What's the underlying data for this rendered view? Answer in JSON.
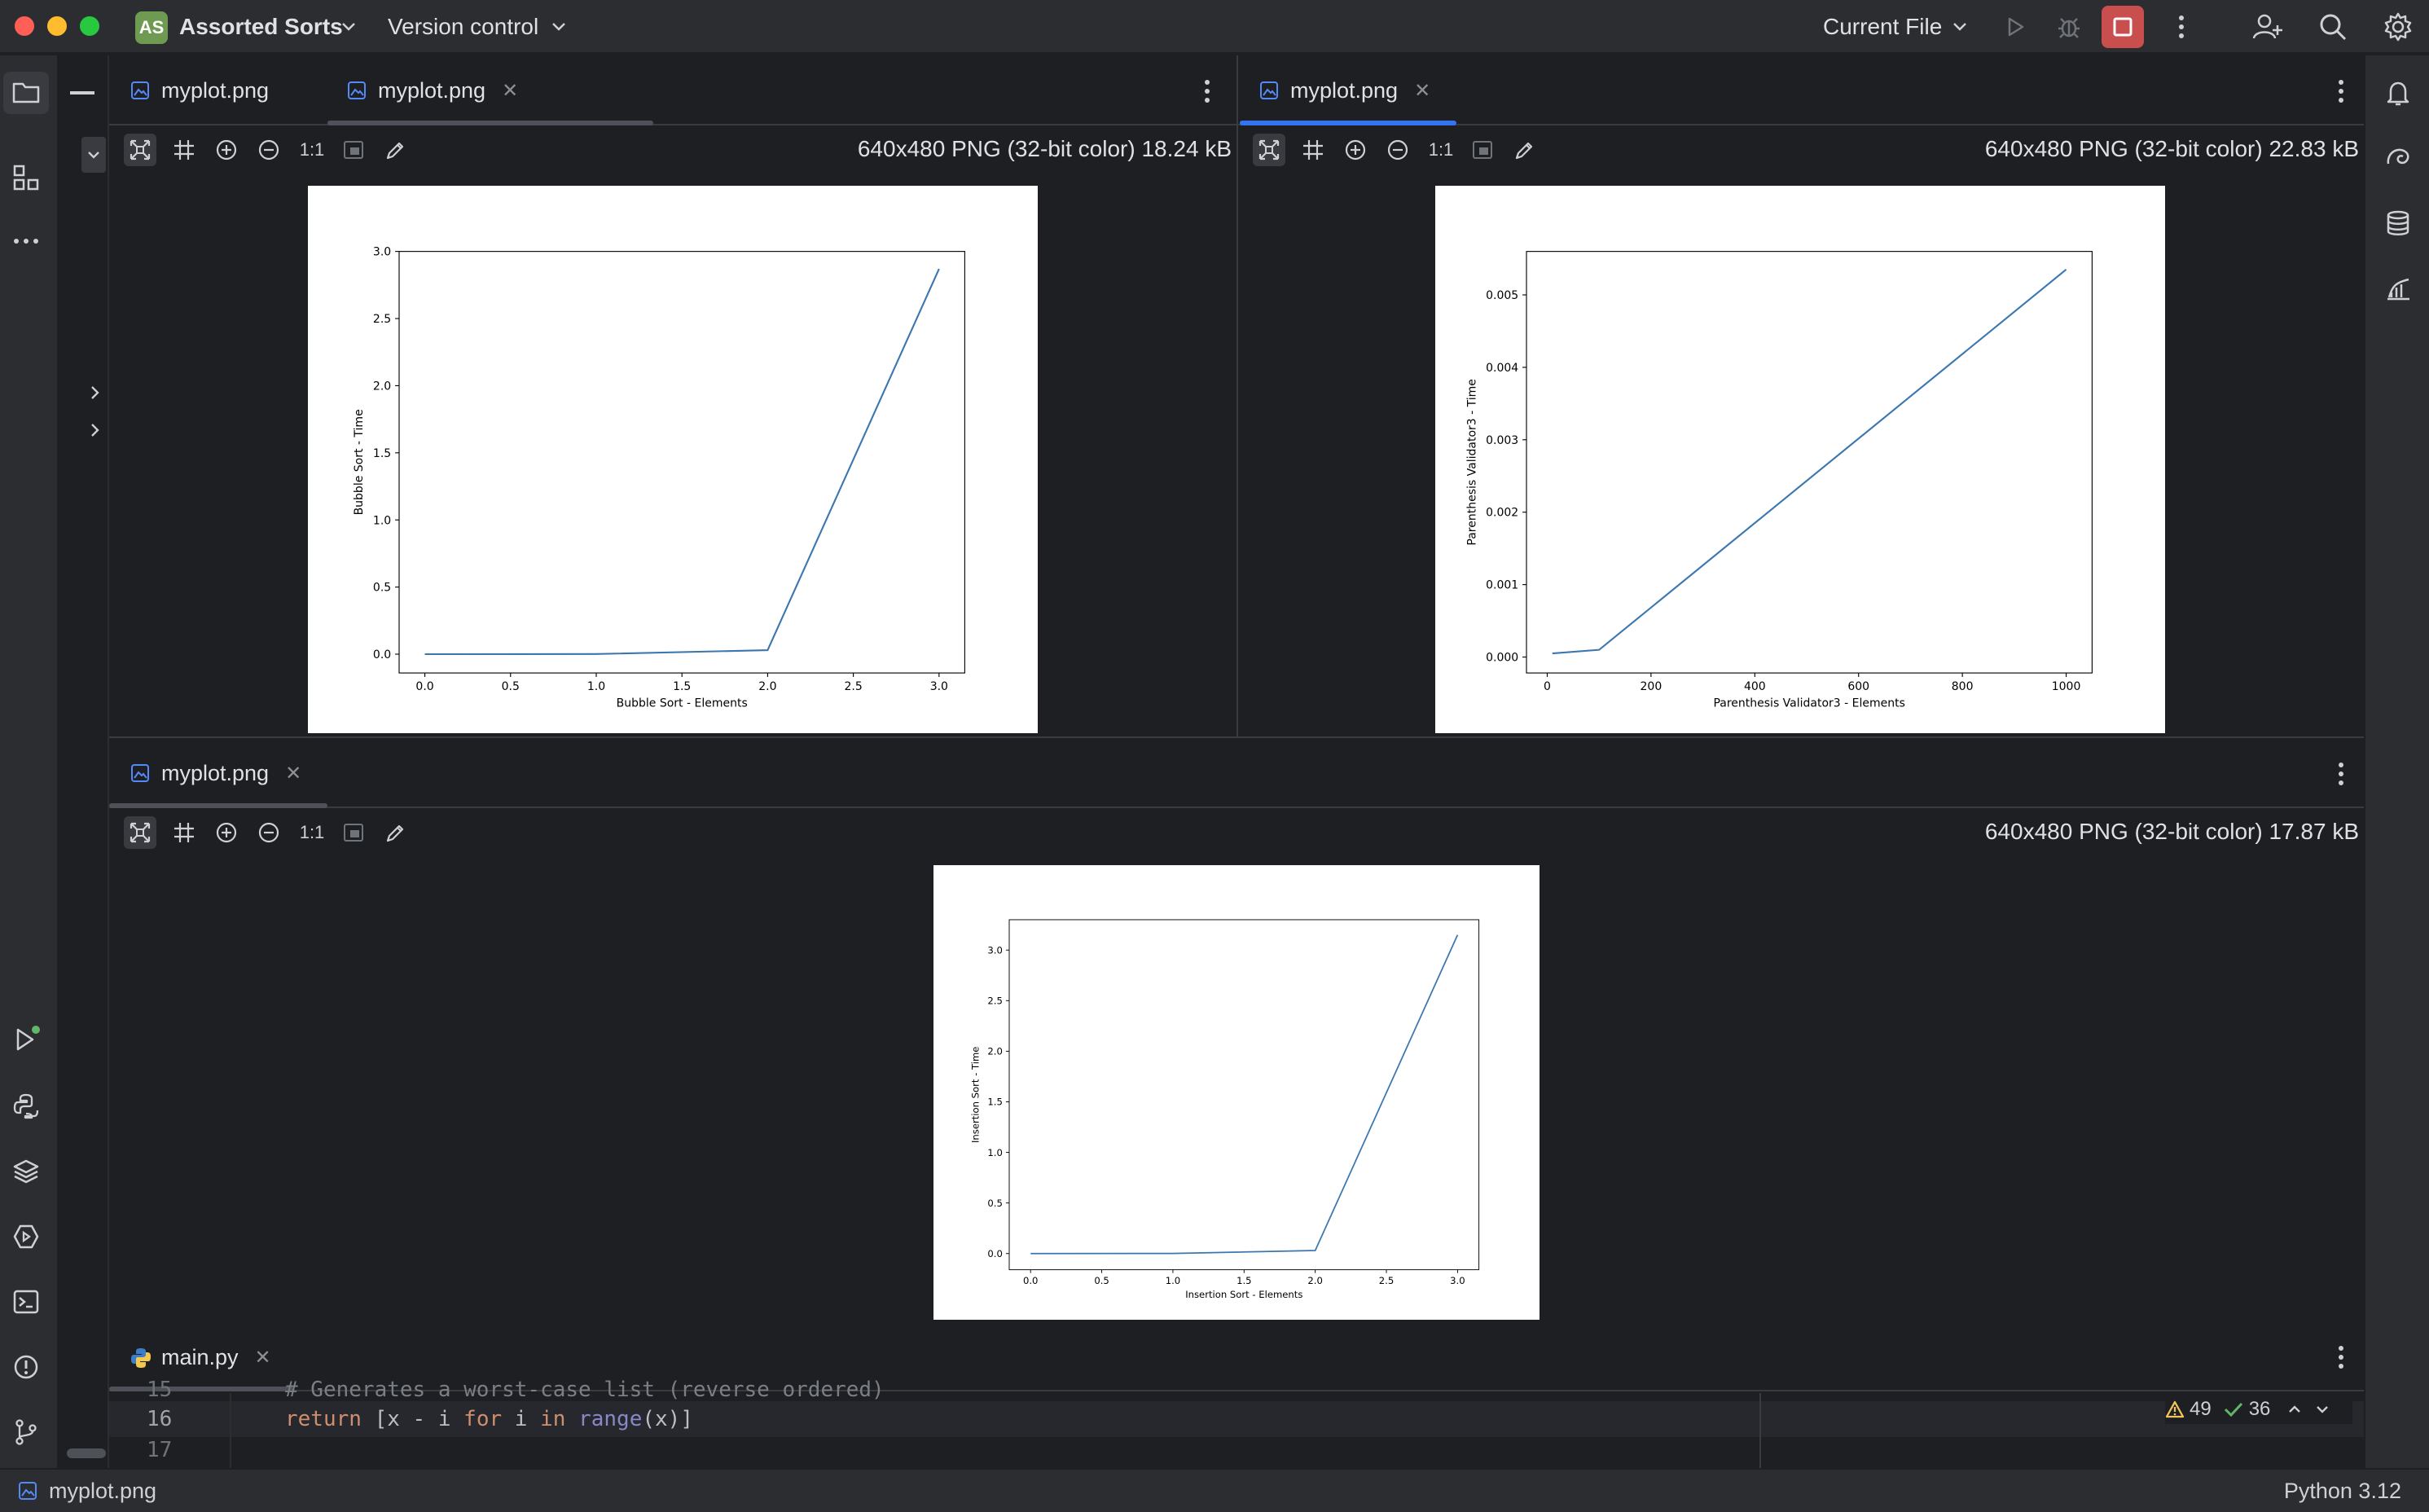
{
  "titlebar": {
    "project_badge": "AS",
    "project_name": "Assorted Sorts",
    "vcs_label": "Version control",
    "run_config": "Current File"
  },
  "panels": {
    "top_left": {
      "tabs": [
        {
          "label": "myplot.png"
        },
        {
          "label": "myplot.png"
        }
      ],
      "toolbar": {
        "actual_size_label": "1:1"
      },
      "image_info": "640x480 PNG (32-bit color) 18.24 kB"
    },
    "top_right": {
      "tabs": [
        {
          "label": "myplot.png"
        }
      ],
      "toolbar": {
        "actual_size_label": "1:1"
      },
      "image_info": "640x480 PNG (32-bit color) 22.83 kB"
    },
    "bottom": {
      "tabs": [
        {
          "label": "myplot.png"
        }
      ],
      "toolbar": {
        "actual_size_label": "1:1"
      },
      "image_info": "640x480 PNG (32-bit color) 17.87 kB"
    }
  },
  "chart_data": [
    {
      "type": "line",
      "x": [
        0,
        1,
        2,
        3
      ],
      "series": [
        {
          "values": [
            0.0,
            0.001,
            0.03,
            2.87
          ]
        }
      ],
      "xlabel": "Bubble Sort - Elements",
      "ylabel": "Bubble Sort - Time",
      "xlim": [
        -0.15,
        3.15
      ],
      "ylim": [
        -0.14,
        3.0
      ],
      "xticks": [
        "0.0",
        "0.5",
        "1.0",
        "1.5",
        "2.0",
        "2.5",
        "3.0"
      ],
      "yticks": [
        "0.0",
        "0.5",
        "1.0",
        "1.5",
        "2.0",
        "2.5",
        "3.0"
      ],
      "color": "#3b76af"
    },
    {
      "type": "line",
      "x": [
        10,
        100,
        1000
      ],
      "series": [
        {
          "values": [
            5e-05,
            0.0001,
            0.00535
          ]
        }
      ],
      "xlabel": "Parenthesis Validator3 - Elements",
      "ylabel": "Parenthesis Validator3 - Time",
      "xlim": [
        -40,
        1050
      ],
      "ylim": [
        -0.00022,
        0.0056
      ],
      "xticks": [
        "0",
        "200",
        "400",
        "600",
        "800",
        "1000"
      ],
      "yticks": [
        "0.000",
        "0.001",
        "0.002",
        "0.003",
        "0.004",
        "0.005"
      ],
      "color": "#3b76af"
    },
    {
      "type": "line",
      "x": [
        0,
        1,
        2,
        3
      ],
      "series": [
        {
          "values": [
            0.0,
            0.001,
            0.03,
            3.15
          ]
        }
      ],
      "xlabel": "Insertion Sort - Elements",
      "ylabel": "Insertion Sort - Time",
      "xlim": [
        -0.15,
        3.15
      ],
      "ylim": [
        -0.16,
        3.3
      ],
      "xticks": [
        "0.0",
        "0.5",
        "1.0",
        "1.5",
        "2.0",
        "2.5",
        "3.0"
      ],
      "yticks": [
        "0.0",
        "0.5",
        "1.0",
        "1.5",
        "2.0",
        "2.5",
        "3.0"
      ],
      "color": "#3b76af"
    }
  ],
  "editor": {
    "tab_label": "main.py",
    "lines": [
      {
        "num": "15",
        "text": "# Generates a worst-case list (reverse ordered)"
      },
      {
        "num": "16",
        "text": "return [x - i for i in range(x)]"
      },
      {
        "num": "17",
        "text": ""
      }
    ],
    "warnings_count": "49",
    "ok_count": "36"
  },
  "statusbar": {
    "file": "myplot.png",
    "interpreter": "Python 3.12"
  },
  "colors": {
    "accent": "#3574f0",
    "stop_button": "#c94f4f",
    "plot_line": "#3b76af"
  }
}
